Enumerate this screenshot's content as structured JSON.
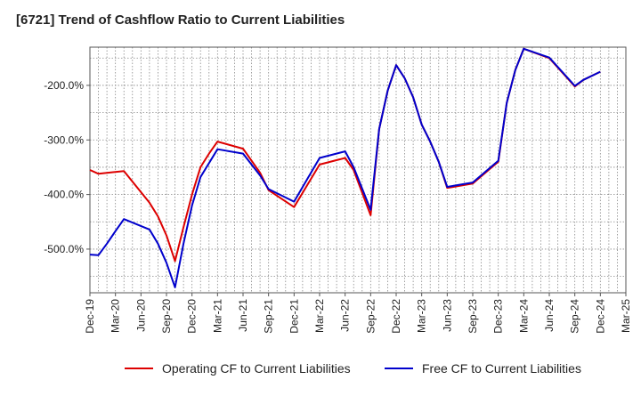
{
  "chart_data": {
    "type": "line",
    "title": "[6721]  Trend of Cashflow Ratio to Current Liabilities",
    "xlabel": "",
    "ylabel": "",
    "ylim": [
      -580,
      -130
    ],
    "yticks": [
      -500,
      -400,
      -300,
      -200
    ],
    "ytick_labels": [
      "-500.0%",
      "-400.0%",
      "-300.0%",
      "-200.0%"
    ],
    "x_range": [
      "Dec-19",
      "Mar-25"
    ],
    "xticks": [
      "Dec-19",
      "Mar-20",
      "Jun-20",
      "Sep-20",
      "Dec-20",
      "Mar-21",
      "Jun-21",
      "Sep-21",
      "Dec-21",
      "Mar-22",
      "Jun-22",
      "Sep-22",
      "Dec-22",
      "Mar-23",
      "Jun-23",
      "Sep-23",
      "Dec-23",
      "Mar-24",
      "Jun-24",
      "Sep-24",
      "Dec-24",
      "Mar-25"
    ],
    "grid": true,
    "legend_position": "bottom",
    "series": [
      {
        "name": "Operating CF to Current Liabilities",
        "color": "#dd0000",
        "points": [
          {
            "x": "Dec-19",
            "y": -355
          },
          {
            "x": "Jan-20",
            "y": -362
          },
          {
            "x": "Apr-20",
            "y": -357
          },
          {
            "x": "Jul-20",
            "y": -415
          },
          {
            "x": "Aug-20",
            "y": -440
          },
          {
            "x": "Sep-20",
            "y": -475
          },
          {
            "x": "Oct-20",
            "y": -522
          },
          {
            "x": "Nov-20",
            "y": -460
          },
          {
            "x": "Dec-20",
            "y": -400
          },
          {
            "x": "Jan-21",
            "y": -350
          },
          {
            "x": "Feb-21",
            "y": -325
          },
          {
            "x": "Mar-21",
            "y": -303
          },
          {
            "x": "Jun-21",
            "y": -316
          },
          {
            "x": "Aug-21",
            "y": -360
          },
          {
            "x": "Sep-21",
            "y": -392
          },
          {
            "x": "Dec-21",
            "y": -423
          },
          {
            "x": "Mar-22",
            "y": -345
          },
          {
            "x": "Jun-22",
            "y": -333
          },
          {
            "x": "Jul-22",
            "y": -355
          },
          {
            "x": "Sep-22",
            "y": -438
          },
          {
            "x": "Oct-22",
            "y": -280
          },
          {
            "x": "Nov-22",
            "y": -210
          },
          {
            "x": "Dec-22",
            "y": -163
          },
          {
            "x": "Jan-23",
            "y": -187
          },
          {
            "x": "Feb-23",
            "y": -222
          },
          {
            "x": "Mar-23",
            "y": -272
          },
          {
            "x": "Apr-23",
            "y": -303
          },
          {
            "x": "May-23",
            "y": -340
          },
          {
            "x": "Jun-23",
            "y": -388
          },
          {
            "x": "Sep-23",
            "y": -380
          },
          {
            "x": "Dec-23",
            "y": -340
          },
          {
            "x": "Jan-24",
            "y": -232
          },
          {
            "x": "Feb-24",
            "y": -172
          },
          {
            "x": "Mar-24",
            "y": -133
          },
          {
            "x": "Jun-24",
            "y": -150
          },
          {
            "x": "Sep-24",
            "y": -202
          },
          {
            "x": "Oct-24",
            "y": -190
          },
          {
            "x": "Dec-24",
            "y": -175
          }
        ]
      },
      {
        "name": "Free CF to Current Liabilities",
        "color": "#0000cc",
        "points": [
          {
            "x": "Dec-19",
            "y": -510
          },
          {
            "x": "Jan-20",
            "y": -511
          },
          {
            "x": "Feb-20",
            "y": -490
          },
          {
            "x": "Mar-20",
            "y": -467
          },
          {
            "x": "Apr-20",
            "y": -445
          },
          {
            "x": "Jul-20",
            "y": -464
          },
          {
            "x": "Aug-20",
            "y": -490
          },
          {
            "x": "Sep-20",
            "y": -525
          },
          {
            "x": "Oct-20",
            "y": -570
          },
          {
            "x": "Nov-20",
            "y": -490
          },
          {
            "x": "Dec-20",
            "y": -420
          },
          {
            "x": "Jan-21",
            "y": -368
          },
          {
            "x": "Mar-21",
            "y": -317
          },
          {
            "x": "Jun-21",
            "y": -325
          },
          {
            "x": "Aug-21",
            "y": -365
          },
          {
            "x": "Sep-21",
            "y": -390
          },
          {
            "x": "Dec-21",
            "y": -413
          },
          {
            "x": "Mar-22",
            "y": -333
          },
          {
            "x": "Jun-22",
            "y": -321
          },
          {
            "x": "Jul-22",
            "y": -350
          },
          {
            "x": "Sep-22",
            "y": -428
          },
          {
            "x": "Oct-22",
            "y": -280
          },
          {
            "x": "Nov-22",
            "y": -210
          },
          {
            "x": "Dec-22",
            "y": -163
          },
          {
            "x": "Jan-23",
            "y": -187
          },
          {
            "x": "Feb-23",
            "y": -222
          },
          {
            "x": "Mar-23",
            "y": -272
          },
          {
            "x": "Apr-23",
            "y": -303
          },
          {
            "x": "May-23",
            "y": -340
          },
          {
            "x": "Jun-23",
            "y": -386
          },
          {
            "x": "Sep-23",
            "y": -378
          },
          {
            "x": "Dec-23",
            "y": -338
          },
          {
            "x": "Jan-24",
            "y": -232
          },
          {
            "x": "Feb-24",
            "y": -172
          },
          {
            "x": "Mar-24",
            "y": -133
          },
          {
            "x": "Jun-24",
            "y": -149
          },
          {
            "x": "Sep-24",
            "y": -201
          },
          {
            "x": "Oct-24",
            "y": -190
          },
          {
            "x": "Dec-24",
            "y": -175
          }
        ]
      }
    ]
  }
}
